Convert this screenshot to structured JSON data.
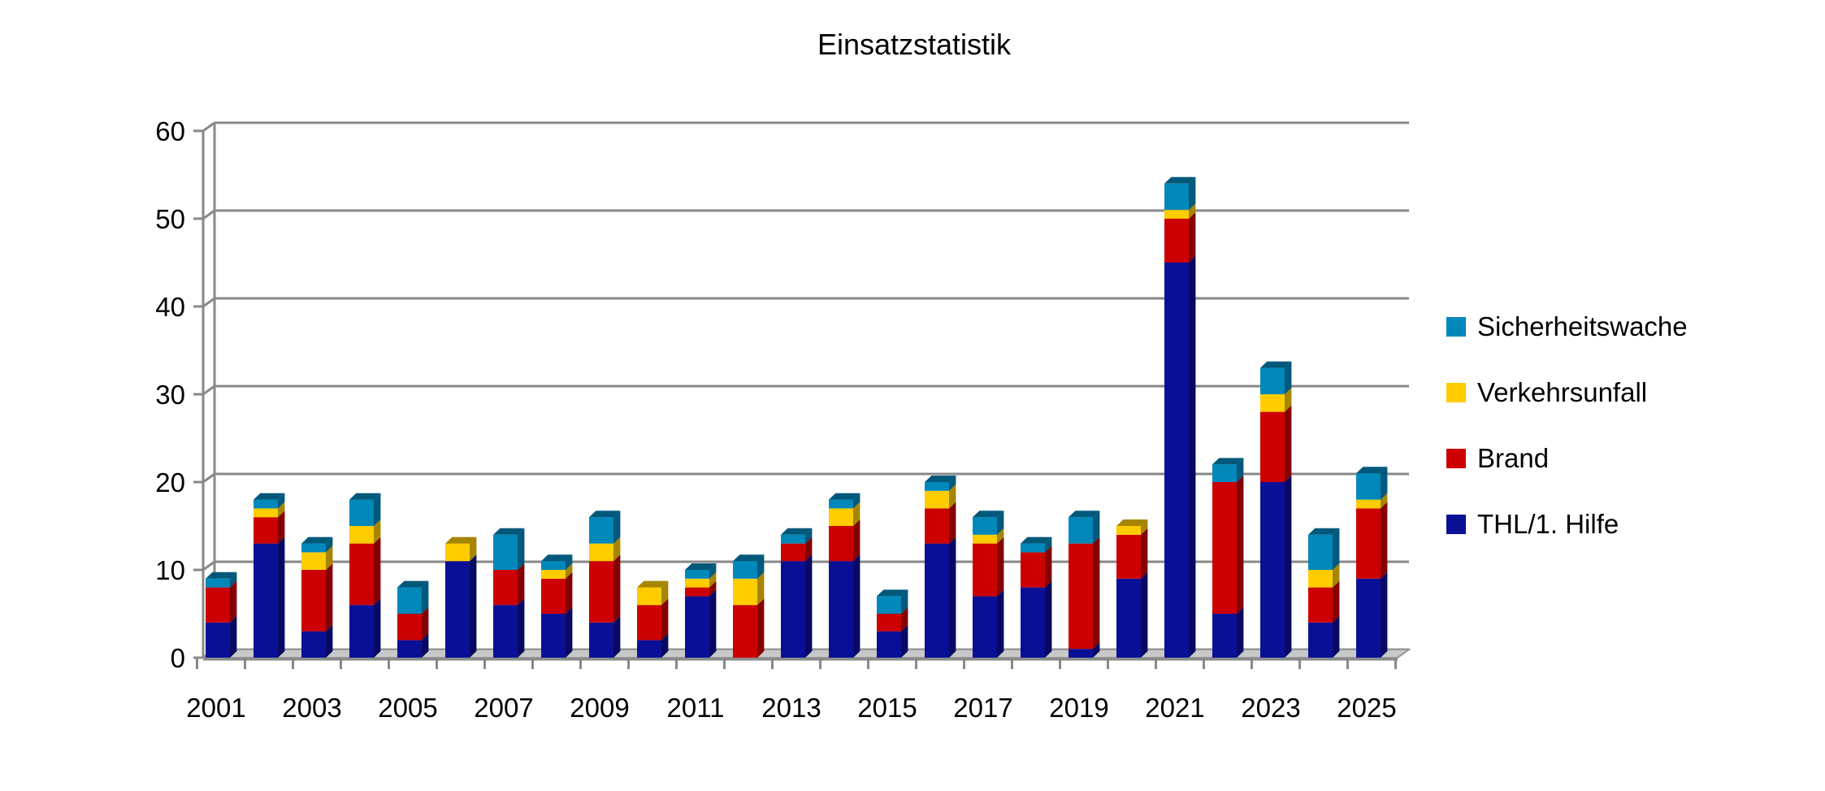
{
  "chart_data": {
    "type": "bar",
    "stacked": true,
    "title": "Einsatzstatistik",
    "xlabel": "",
    "ylabel": "",
    "ylim": [
      0,
      60
    ],
    "yticks": [
      0,
      10,
      20,
      30,
      40,
      50,
      60
    ],
    "grid": true,
    "legend_position": "right",
    "categories": [
      "2001",
      "2002",
      "2003",
      "2004",
      "2005",
      "2006",
      "2007",
      "2008",
      "2009",
      "2010",
      "2011",
      "2012",
      "2013",
      "2014",
      "2015",
      "2016",
      "2017",
      "2018",
      "2019",
      "2020",
      "2021",
      "2022",
      "2023",
      "2024",
      "2025"
    ],
    "x_tick_labels": [
      "2001",
      "2003",
      "2005",
      "2007",
      "2009",
      "2011",
      "2013",
      "2015",
      "2017",
      "2019",
      "2021",
      "2023",
      "2025"
    ],
    "series": [
      {
        "name": "THL/1. Hilfe",
        "color": "#0a1096",
        "values": [
          4,
          13,
          3,
          6,
          2,
          11,
          6,
          5,
          4,
          2,
          7,
          0,
          11,
          11,
          3,
          13,
          7,
          8,
          1,
          9,
          45,
          5,
          20,
          4,
          9
        ]
      },
      {
        "name": "Brand",
        "color": "#cc0000",
        "values": [
          4,
          3,
          7,
          7,
          3,
          0,
          4,
          4,
          7,
          4,
          1,
          6,
          2,
          4,
          2,
          4,
          6,
          4,
          12,
          5,
          5,
          15,
          8,
          4,
          8
        ]
      },
      {
        "name": "Verkehrsunfall",
        "color": "#ffcc00",
        "values": [
          0,
          1,
          2,
          2,
          0,
          2,
          0,
          1,
          2,
          2,
          1,
          3,
          0,
          2,
          0,
          2,
          1,
          0,
          0,
          1,
          1,
          0,
          2,
          2,
          1
        ]
      },
      {
        "name": "Sicherheitswache",
        "color": "#0088bb",
        "values": [
          1,
          1,
          1,
          3,
          3,
          0,
          4,
          1,
          3,
          0,
          1,
          2,
          1,
          1,
          2,
          1,
          2,
          1,
          3,
          0,
          3,
          2,
          3,
          4,
          3
        ]
      }
    ]
  }
}
